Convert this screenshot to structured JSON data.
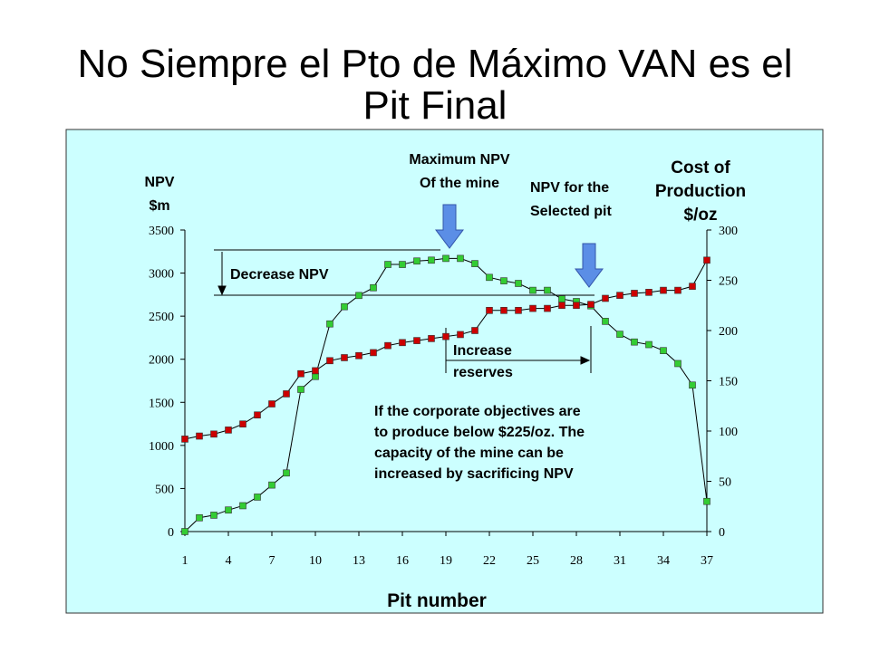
{
  "title": [
    "No Siempre el Pto de Máximo VAN es el",
    "Pit Final"
  ],
  "chart_data": {
    "type": "line",
    "x": [
      1,
      2,
      3,
      4,
      5,
      6,
      7,
      8,
      9,
      10,
      11,
      12,
      13,
      14,
      15,
      16,
      17,
      18,
      19,
      20,
      21,
      22,
      23,
      24,
      25,
      26,
      27,
      28,
      29,
      30,
      31,
      32,
      33,
      34,
      35,
      36,
      37
    ],
    "xlim": [
      1,
      37
    ],
    "xticks": [
      1,
      4,
      7,
      10,
      13,
      16,
      19,
      22,
      25,
      28,
      31,
      34,
      37
    ],
    "xlabel": "Pit number",
    "ylabel": [
      "NPV",
      "$m"
    ],
    "y2label": [
      "Cost of",
      "Production",
      "$/oz"
    ],
    "ylim": [
      0,
      3500
    ],
    "yticks": [
      0,
      500,
      1000,
      1500,
      2000,
      2500,
      3000,
      3500
    ],
    "y2lim": [
      0,
      300
    ],
    "y2ticks": [
      0,
      50,
      100,
      150,
      200,
      250,
      300
    ],
    "series": [
      {
        "color": "#33cc33",
        "axis": "y",
        "values": [
          0,
          160,
          190,
          250,
          300,
          400,
          540,
          680,
          1650,
          1800,
          2410,
          2610,
          2740,
          2830,
          3100,
          3100,
          3140,
          3150,
          3170,
          3170,
          3110,
          2950,
          2910,
          2880,
          2800,
          2800,
          2700,
          2670,
          2620,
          2440,
          2290,
          2200,
          2170,
          2100,
          1950,
          1700,
          350
        ]
      },
      {
        "color": "#cc0000",
        "axis": "y2",
        "values": [
          92,
          95,
          97,
          101,
          107,
          116,
          127,
          137,
          157,
          160,
          170,
          173,
          175,
          178,
          185,
          188,
          190,
          192,
          194,
          196,
          200,
          220,
          220,
          220,
          222,
          222,
          225,
          225,
          226,
          232,
          235,
          237,
          238,
          240,
          240,
          244,
          270
        ]
      }
    ],
    "annotations": {
      "max_npv": [
        "Maximum NPV",
        "Of the mine"
      ],
      "selected": [
        "NPV for the",
        "Selected pit"
      ],
      "decrease": "Decrease NPV",
      "increase": [
        "Increase",
        "reserves"
      ],
      "note": [
        "If the corporate objectives are",
        "to produce below $225/oz. The",
        "capacity of the mine can be",
        "increased by sacrificing NPV"
      ]
    }
  }
}
